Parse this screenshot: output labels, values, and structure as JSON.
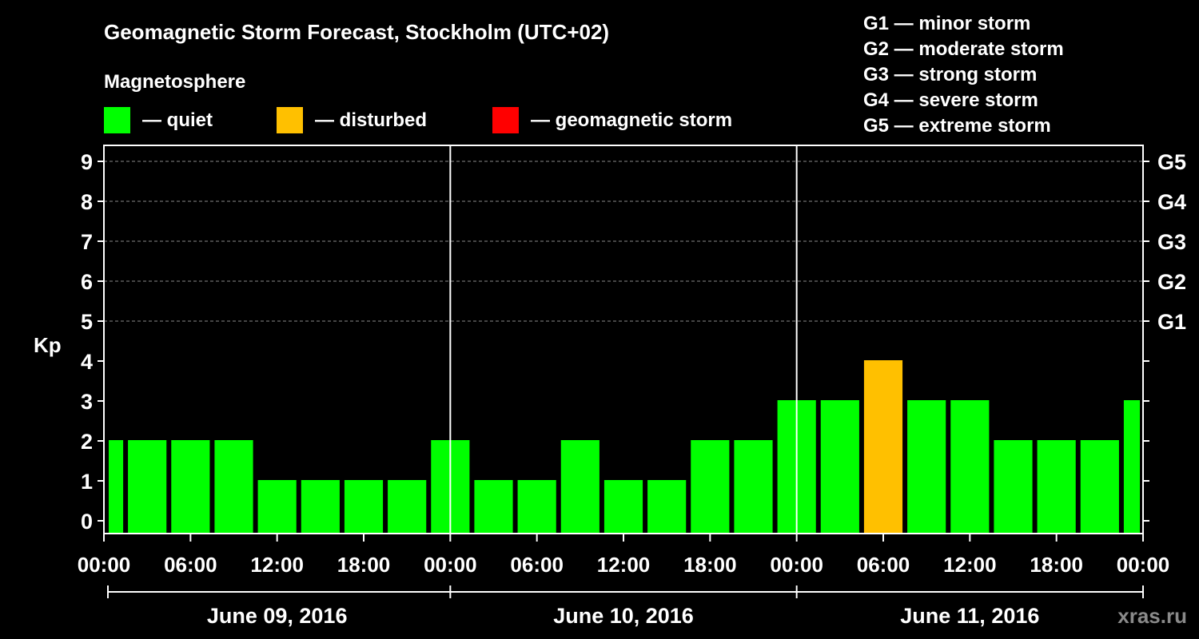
{
  "chart_data": {
    "type": "bar",
    "title": "Geomagnetic Storm Forecast, Stockholm (UTC+02)",
    "subtitle": "Magnetosphere",
    "ylabel": "Kp",
    "ylim": [
      0,
      9
    ],
    "yticks": [
      "0",
      "1",
      "2",
      "3",
      "4",
      "5",
      "6",
      "7",
      "8",
      "9"
    ],
    "right_ticks": [
      {
        "kp": 5,
        "label": "G1"
      },
      {
        "kp": 6,
        "label": "G2"
      },
      {
        "kp": 7,
        "label": "G3"
      },
      {
        "kp": 8,
        "label": "G4"
      },
      {
        "kp": 9,
        "label": "G5"
      }
    ],
    "xticks": [
      "00:00",
      "06:00",
      "12:00",
      "18:00",
      "00:00",
      "06:00",
      "12:00",
      "18:00",
      "00:00",
      "06:00",
      "12:00",
      "18:00",
      "00:00"
    ],
    "days": [
      "June 09, 2016",
      "June 10, 2016",
      "June 11, 2016"
    ],
    "legend": [
      {
        "label": "— quiet",
        "color": "#00ff00"
      },
      {
        "label": "— disturbed",
        "color": "#ffc000"
      },
      {
        "label": "— geomagnetic storm",
        "color": "#ff0000"
      }
    ],
    "scale_legend": [
      "G1 — minor storm",
      "G2 — moderate storm",
      "G3 — strong storm",
      "G4 — severe storm",
      "G5 — extreme storm"
    ],
    "series": [
      {
        "name": "Kp",
        "values": [
          2,
          2,
          2,
          2,
          1,
          1,
          1,
          1,
          2,
          1,
          1,
          2,
          1,
          1,
          2,
          2,
          3,
          3,
          4,
          3,
          3,
          2,
          2,
          2,
          3
        ],
        "status": [
          "quiet",
          "quiet",
          "quiet",
          "quiet",
          "quiet",
          "quiet",
          "quiet",
          "quiet",
          "quiet",
          "quiet",
          "quiet",
          "quiet",
          "quiet",
          "quiet",
          "quiet",
          "quiet",
          "quiet",
          "quiet",
          "disturbed",
          "quiet",
          "quiet",
          "quiet",
          "quiet",
          "quiet",
          "quiet"
        ]
      }
    ],
    "colors": {
      "quiet": "#00ff00",
      "disturbed": "#ffc000",
      "storm": "#ff0000"
    },
    "grid": true
  },
  "watermark": "xras.ru"
}
